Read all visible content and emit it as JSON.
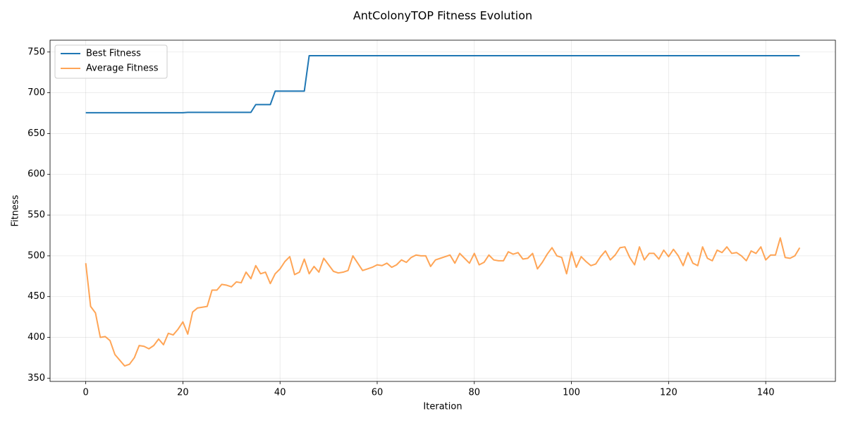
{
  "chart_data": {
    "type": "line",
    "title": "AntColonyTOP Fitness Evolution",
    "x_label": "Iteration",
    "y_label": "Fitness",
    "x": [
      0,
      1,
      2,
      3,
      4,
      5,
      6,
      7,
      8,
      9,
      10,
      11,
      12,
      13,
      14,
      15,
      16,
      17,
      18,
      19,
      20,
      21,
      22,
      23,
      24,
      25,
      26,
      27,
      28,
      29,
      30,
      31,
      32,
      33,
      34,
      35,
      36,
      37,
      38,
      39,
      40,
      41,
      42,
      43,
      44,
      45,
      46,
      47,
      48,
      49,
      50,
      51,
      52,
      53,
      54,
      55,
      56,
      57,
      58,
      59,
      60,
      61,
      62,
      63,
      64,
      65,
      66,
      67,
      68,
      69,
      70,
      71,
      72,
      73,
      74,
      75,
      76,
      77,
      78,
      79,
      80,
      81,
      82,
      83,
      84,
      85,
      86,
      87,
      88,
      89,
      90,
      91,
      92,
      93,
      94,
      95,
      96,
      97,
      98,
      99,
      100,
      101,
      102,
      103,
      104,
      105,
      106,
      107,
      108,
      109,
      110,
      111,
      112,
      113,
      114,
      115,
      116,
      117,
      118,
      119,
      120,
      121,
      122,
      123,
      124,
      125,
      126,
      127,
      128,
      129,
      130,
      131,
      132,
      133,
      134,
      135,
      136,
      137,
      138,
      139,
      140,
      141,
      142,
      143,
      144,
      145,
      146,
      147
    ],
    "series": [
      {
        "name": "Best Fitness",
        "color": "#1f77b4",
        "values": [
          675.5,
          675.5,
          675.5,
          675.5,
          675.5,
          675.5,
          675.5,
          675.5,
          675.5,
          675.5,
          675.5,
          675.5,
          675.5,
          675.5,
          675.5,
          675.5,
          675.5,
          675.5,
          675.5,
          675.5,
          675.5,
          676,
          676,
          676,
          676,
          676,
          676,
          676,
          676,
          676,
          676,
          676,
          676,
          676,
          676,
          685.5,
          685.5,
          685.5,
          685.5,
          702,
          702,
          702,
          702,
          702,
          702,
          702,
          745.5,
          745.5,
          745.5,
          745.5,
          745.5,
          745.5,
          745.5,
          745.5,
          745.5,
          745.5,
          745.5,
          745.5,
          745.5,
          745.5,
          745.5,
          745.5,
          745.5,
          745.5,
          745.5,
          745.5,
          745.5,
          745.5,
          745.5,
          745.5,
          745.5,
          745.5,
          745.5,
          745.5,
          745.5,
          745.5,
          745.5,
          745.5,
          745.5,
          745.5,
          745.5,
          745.5,
          745.5,
          745.5,
          745.5,
          745.5,
          745.5,
          745.5,
          745.5,
          745.5,
          745.5,
          745.5,
          745.5,
          745.5,
          745.5,
          745.5,
          745.5,
          745.5,
          745.5,
          745.5,
          745.5,
          745.5,
          745.5,
          745.5,
          745.5,
          745.5,
          745.5,
          745.5,
          745.5,
          745.5,
          745.5,
          745.5,
          745.5,
          745.5,
          745.5,
          745.5,
          745.5,
          745.5,
          745.5,
          745.5,
          745.5,
          745.5,
          745.5,
          745.5,
          745.5,
          745.5,
          745.5,
          745.5,
          745.5,
          745.5,
          745.5,
          745.5,
          745.5,
          745.5,
          745.5,
          745.5,
          745.5,
          745.5,
          745.5,
          745.5,
          745.5,
          745.5,
          745.5,
          745.5,
          745.5,
          745.5,
          745.5,
          745.5
        ]
      },
      {
        "name": "Average Fitness",
        "color": "#ff7f0e",
        "values": [
          491,
          438,
          430,
          400,
          401,
          396,
          379,
          372,
          365,
          367,
          375,
          390,
          389,
          386,
          390,
          398,
          391,
          405,
          403,
          410,
          419,
          404,
          431,
          436,
          437,
          438,
          458,
          458,
          465,
          464,
          462,
          468,
          467,
          480,
          472,
          488,
          478,
          480,
          466,
          478,
          484,
          493,
          499,
          477,
          480,
          496,
          478,
          487,
          480,
          497,
          489,
          481,
          479,
          480,
          482,
          500,
          491,
          482,
          484,
          486,
          489,
          488,
          491,
          486,
          489,
          495,
          492,
          498,
          501,
          500,
          500,
          487,
          495,
          497,
          499,
          501,
          491,
          503,
          497,
          491,
          503,
          489,
          492,
          501,
          495,
          494,
          494,
          505,
          502,
          504,
          496,
          497,
          503,
          484,
          492,
          502,
          510,
          500,
          498,
          478,
          505,
          486,
          499,
          493,
          488,
          490,
          499,
          506,
          495,
          501,
          510,
          511,
          498,
          489,
          511,
          495,
          503,
          503,
          496,
          507,
          499,
          508,
          500,
          488,
          504,
          491,
          488,
          511,
          497,
          494,
          507,
          504,
          511,
          503,
          504,
          500,
          494,
          506,
          503,
          511,
          495,
          501,
          501,
          522,
          498,
          497,
          500,
          510
        ]
      }
    ],
    "xlim": [
      -7.35,
      154.35
    ],
    "xticks": [
      0,
      20,
      40,
      60,
      80,
      100,
      120,
      140
    ],
    "ylim": [
      346,
      764.5
    ],
    "yticks": [
      350,
      400,
      450,
      500,
      550,
      600,
      650,
      700,
      750
    ],
    "grid": true,
    "legend": "upper left"
  }
}
